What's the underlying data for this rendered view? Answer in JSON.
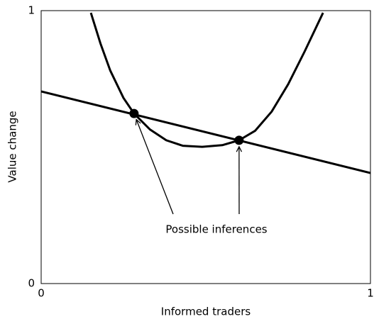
{
  "chart_data": {
    "type": "line",
    "xlabel": "Informed traders",
    "ylabel": "Value change",
    "xlim": [
      0,
      1
    ],
    "ylim": [
      0,
      1
    ],
    "xticks": [
      0,
      1
    ],
    "yticks": [
      0,
      1
    ],
    "series": [
      {
        "color": "#000000",
        "x": [
          0,
          1
        ],
        "values": [
          0.704,
          0.405
        ]
      },
      {
        "color": "#000000",
        "x": [
          0.151,
          0.18,
          0.21,
          0.25,
          0.282,
          0.33,
          0.38,
          0.43,
          0.489,
          0.55,
          0.601,
          0.65,
          0.7,
          0.75,
          0.8,
          0.856
        ],
        "values": [
          0.992,
          0.88,
          0.78,
          0.68,
          0.623,
          0.565,
          0.525,
          0.505,
          0.501,
          0.507,
          0.525,
          0.56,
          0.63,
          0.73,
          0.85,
          0.992
        ]
      },
      {
        "color": "#000000",
        "markers": true,
        "x": [
          0.282,
          0.601
        ],
        "values": [
          0.623,
          0.525
        ]
      }
    ],
    "annotation": "Possible inferences"
  }
}
